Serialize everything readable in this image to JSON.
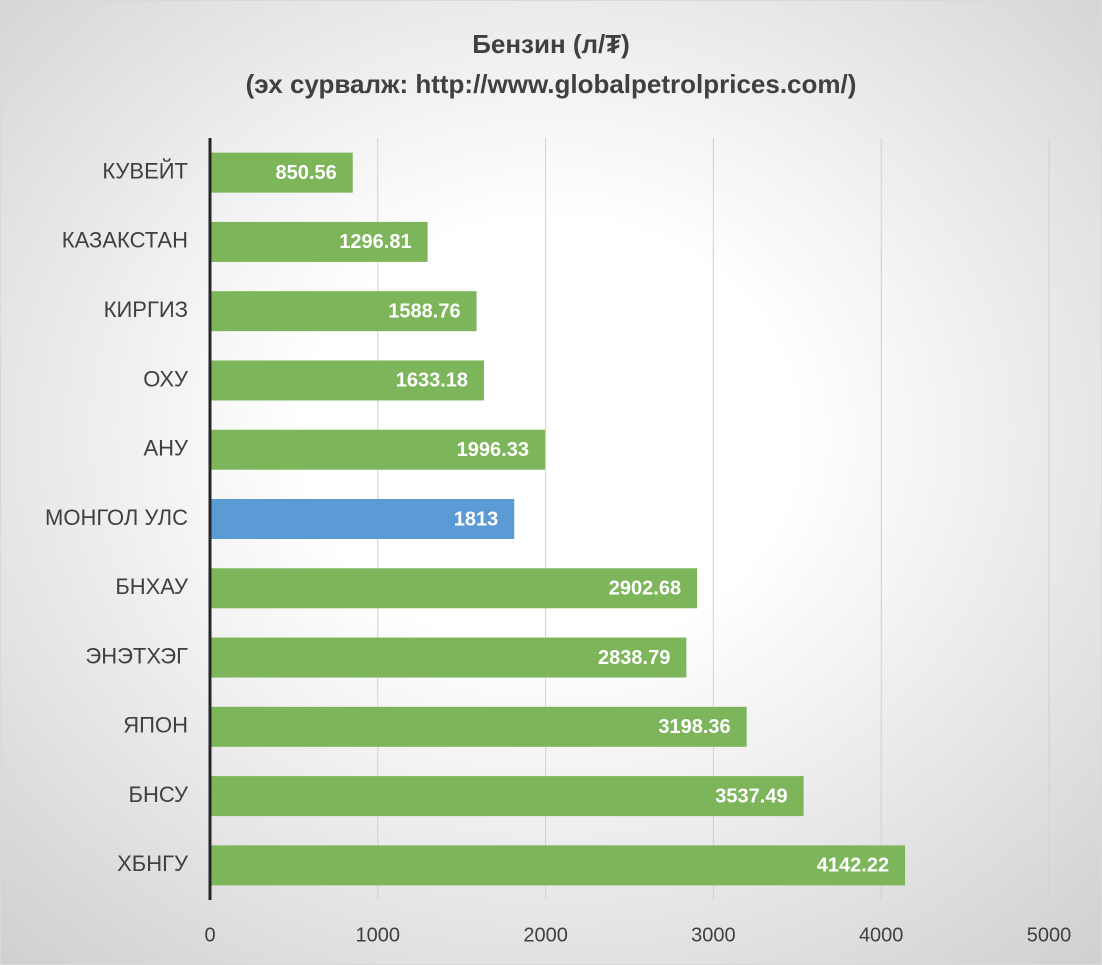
{
  "chart_data": {
    "type": "barh",
    "title": "Бензин (л/₮)",
    "subtitle": "(эх сурвалж: http://www.globalpetrolprices.com/)",
    "categories": [
      "КУВЕЙТ",
      "КАЗАКСТАН",
      "КИРГИЗ",
      "ОХУ",
      "АНУ",
      "МОНГОЛ УЛС",
      "БНХАУ",
      "ЭНЭТХЭГ",
      "ЯПОН",
      "БНСУ",
      "ХБНГУ"
    ],
    "values": [
      850.56,
      1296.81,
      1588.76,
      1633.18,
      1996.33,
      1813,
      2902.68,
      2838.79,
      3198.36,
      3537.49,
      4142.22
    ],
    "colors": [
      "#7db65a",
      "#7db65a",
      "#7db65a",
      "#7db65a",
      "#7db65a",
      "#5b9bd5",
      "#7db65a",
      "#7db65a",
      "#7db65a",
      "#7db65a",
      "#7db65a"
    ],
    "xlim": [
      0,
      5000
    ],
    "xticks": [
      0,
      1000,
      2000,
      3000,
      4000,
      5000
    ],
    "grid": true
  }
}
